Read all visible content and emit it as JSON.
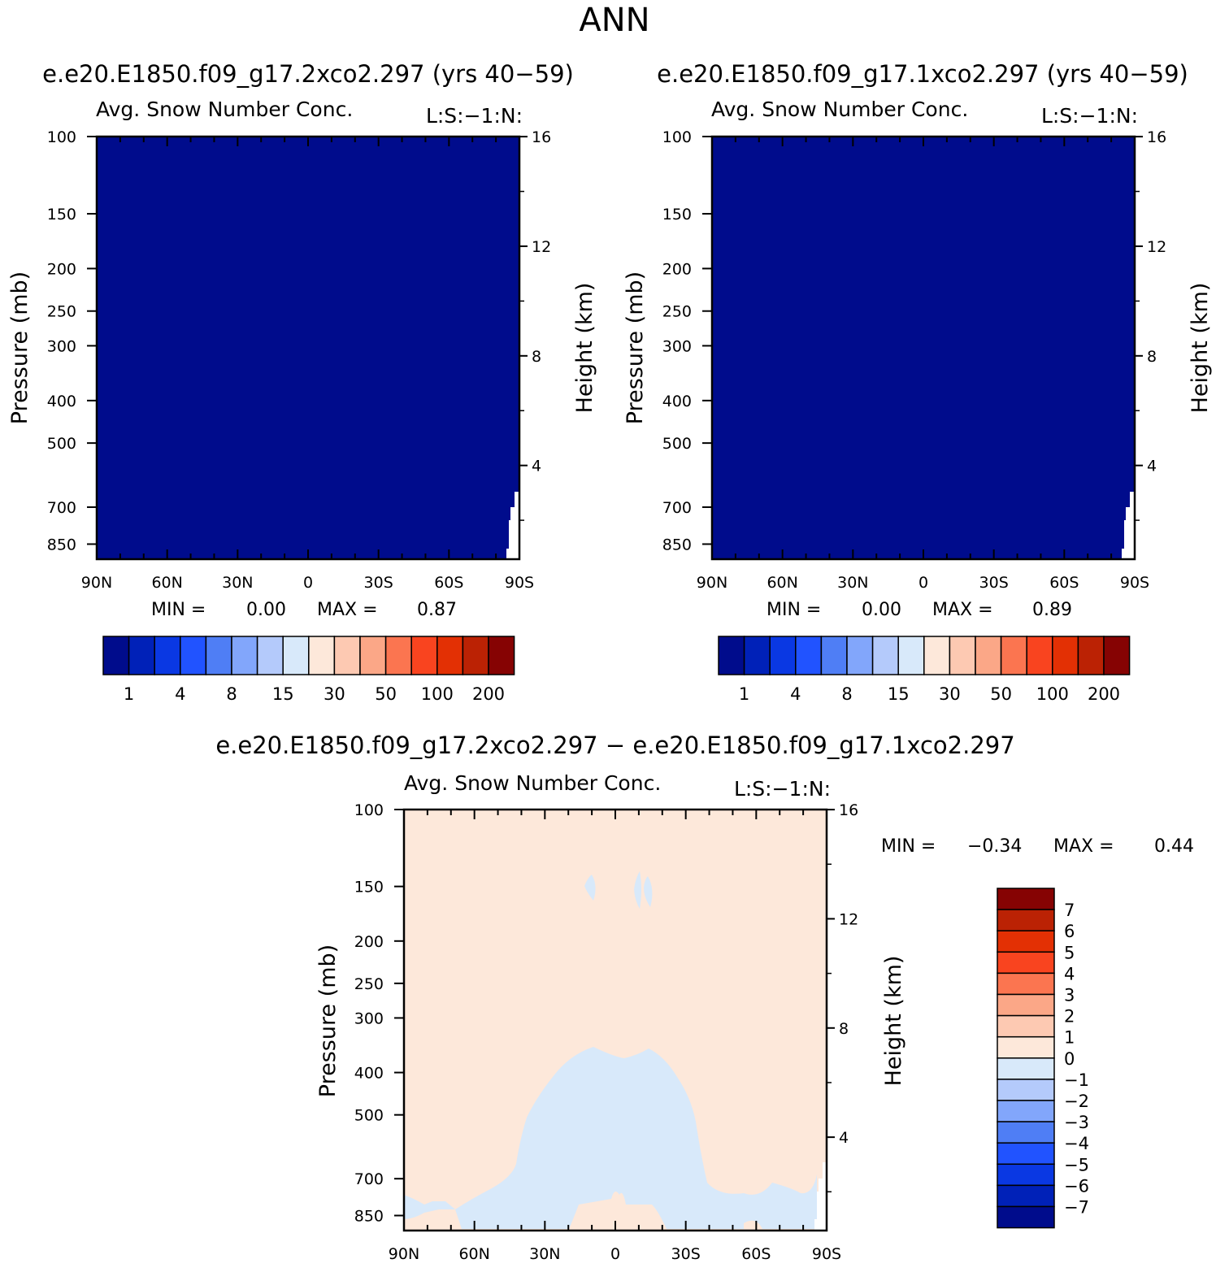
{
  "page_title": "ANN",
  "colors": {
    "abs_levels": [
      "#000c8c",
      "#0021b8",
      "#0a38e3",
      "#2153ff",
      "#4f7ef5",
      "#82a6fb",
      "#b4cafb",
      "#d8e9fa",
      "#fde8da",
      "#fdc9b2",
      "#fba787",
      "#fb7550",
      "#f9441f",
      "#e33004",
      "#bb2204",
      "#860303"
    ],
    "diff_levels": [
      "#000c8c",
      "#0021b8",
      "#0a38e3",
      "#2153ff",
      "#4f7ef5",
      "#82a6fb",
      "#b4cafb",
      "#d8e9fa",
      "#fde8da",
      "#fdc9b2",
      "#fba787",
      "#fb7550",
      "#f9441f",
      "#e33004",
      "#bb2204",
      "#860303"
    ]
  },
  "chart_data": [
    {
      "id": "case1",
      "type": "heatmap",
      "case_title": "e.e20.E1850.f09_g17.2xco2.297 (yrs 40-59)",
      "title": "Avg. Snow Number Conc.",
      "units": "L:S:-1:N:",
      "xlabel": "",
      "ylabel": "Pressure (mb)",
      "ylabel_right": "Height (km)",
      "x_ticks": [
        "90N",
        "60N",
        "30N",
        "0",
        "30S",
        "60S",
        "90S"
      ],
      "x_range": [
        90,
        -90
      ],
      "y_ticks": [
        100,
        150,
        200,
        250,
        300,
        400,
        500,
        700,
        850
      ],
      "y_range_mb": [
        100,
        920
      ],
      "right_ticks": [
        16,
        12,
        8,
        4
      ],
      "fill_level_index": 0,
      "missing_region": "near 90S below ~4 km",
      "min_label": "MIN =",
      "min_value": "0.00",
      "max_label": "MAX =",
      "max_value": "0.87",
      "colorbar_labels": [
        "1",
        "4",
        "8",
        "15",
        "30",
        "50",
        "100",
        "200"
      ]
    },
    {
      "id": "case2",
      "type": "heatmap",
      "case_title": "e.e20.E1850.f09_g17.1xco2.297 (yrs 40-59)",
      "title": "Avg. Snow Number Conc.",
      "units": "L:S:-1:N:",
      "xlabel": "",
      "ylabel": "Pressure (mb)",
      "ylabel_right": "Height (km)",
      "x_ticks": [
        "90N",
        "60N",
        "30N",
        "0",
        "30S",
        "60S",
        "90S"
      ],
      "x_range": [
        90,
        -90
      ],
      "y_ticks": [
        100,
        150,
        200,
        250,
        300,
        400,
        500,
        700,
        850
      ],
      "y_range_mb": [
        100,
        920
      ],
      "right_ticks": [
        16,
        12,
        8,
        4
      ],
      "fill_level_index": 0,
      "missing_region": "near 90S below ~4 km",
      "min_label": "MIN =",
      "min_value": "0.00",
      "max_label": "MAX =",
      "max_value": "0.89",
      "colorbar_labels": [
        "1",
        "4",
        "8",
        "15",
        "30",
        "50",
        "100",
        "200"
      ]
    },
    {
      "id": "diff",
      "type": "heatmap",
      "case_title": "e.e20.E1850.f09_g17.2xco2.297 - e.e20.E1850.f09_g17.1xco2.297",
      "title": "Avg. Snow Number Conc.",
      "units": "L:S:-1:N:",
      "xlabel": "",
      "ylabel": "Pressure (mb)",
      "ylabel_right": "Height (km)",
      "x_ticks": [
        "90N",
        "60N",
        "30N",
        "0",
        "30S",
        "60S",
        "90S"
      ],
      "x_range": [
        90,
        -90
      ],
      "y_ticks": [
        100,
        150,
        200,
        250,
        300,
        400,
        500,
        700,
        850
      ],
      "y_range_mb": [
        100,
        920
      ],
      "right_ticks": [
        16,
        12,
        8,
        4
      ],
      "background_level": "0 to 1",
      "negative_region_level": "-1 to 0",
      "min_label": "MIN =",
      "min_value": "-0.34",
      "max_label": "MAX =",
      "max_value": "0.44",
      "colorbar_labels": [
        "7",
        "6",
        "5",
        "4",
        "3",
        "2",
        "1",
        "0",
        "-1",
        "-2",
        "-3",
        "-4",
        "-5",
        "-6",
        "-7"
      ]
    }
  ]
}
